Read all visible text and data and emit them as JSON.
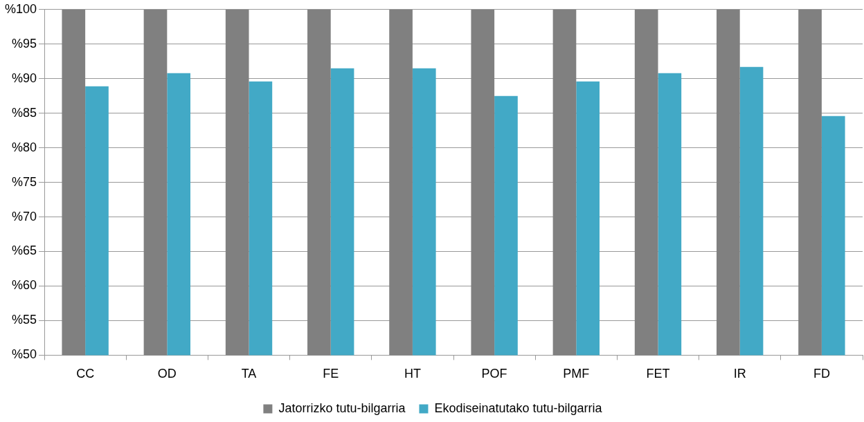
{
  "chart_data": {
    "type": "bar",
    "categories": [
      "CC",
      "OD",
      "TA",
      "FE",
      "HT",
      "POF",
      "PMF",
      "FET",
      "IR",
      "FD"
    ],
    "series": [
      {
        "name": "Jatorrizko tutu-bilgarria",
        "color": "#808080",
        "values": [
          100,
          100,
          100,
          100,
          100,
          100,
          100,
          100,
          100,
          100
        ]
      },
      {
        "name": "Ekodiseinatutako tutu-bilgarria",
        "color": "#42a9c6",
        "values": [
          88.9,
          90.8,
          89.6,
          91.5,
          91.5,
          87.5,
          89.6,
          90.8,
          91.7,
          84.6
        ]
      }
    ],
    "ylim": [
      50,
      100
    ],
    "yticks": [
      {
        "value": 50,
        "label": "%50"
      },
      {
        "value": 55,
        "label": "%55"
      },
      {
        "value": 60,
        "label": "%60"
      },
      {
        "value": 65,
        "label": "%65"
      },
      {
        "value": 70,
        "label": "%70"
      },
      {
        "value": 75,
        "label": "%75"
      },
      {
        "value": 80,
        "label": "%80"
      },
      {
        "value": 85,
        "label": "%85"
      },
      {
        "value": 90,
        "label": "%90"
      },
      {
        "value": 95,
        "label": "%95"
      },
      {
        "value": 100,
        "label": "%100"
      }
    ],
    "grid": "y",
    "legend": "bottom"
  }
}
